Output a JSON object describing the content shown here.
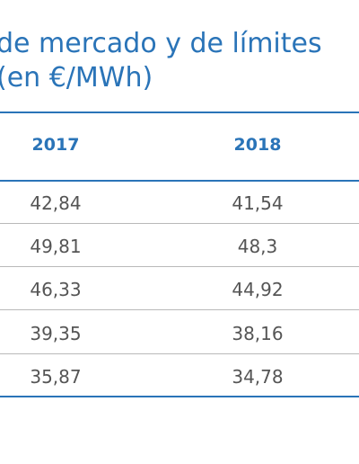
{
  "title": {
    "line1": "de mercado y de límites",
    "line2": "(en €/MWh)"
  },
  "table": {
    "columns": [
      "2017",
      "2018"
    ],
    "rows": [
      [
        "42,84",
        "41,54"
      ],
      [
        "49,81",
        "48,3"
      ],
      [
        "46,33",
        "44,92"
      ],
      [
        "39,35",
        "38,16"
      ],
      [
        "35,87",
        "34,78"
      ]
    ]
  },
  "colors": {
    "accent": "#2a74b8",
    "text": "#555555",
    "row_rule": "#b9b9b9"
  }
}
